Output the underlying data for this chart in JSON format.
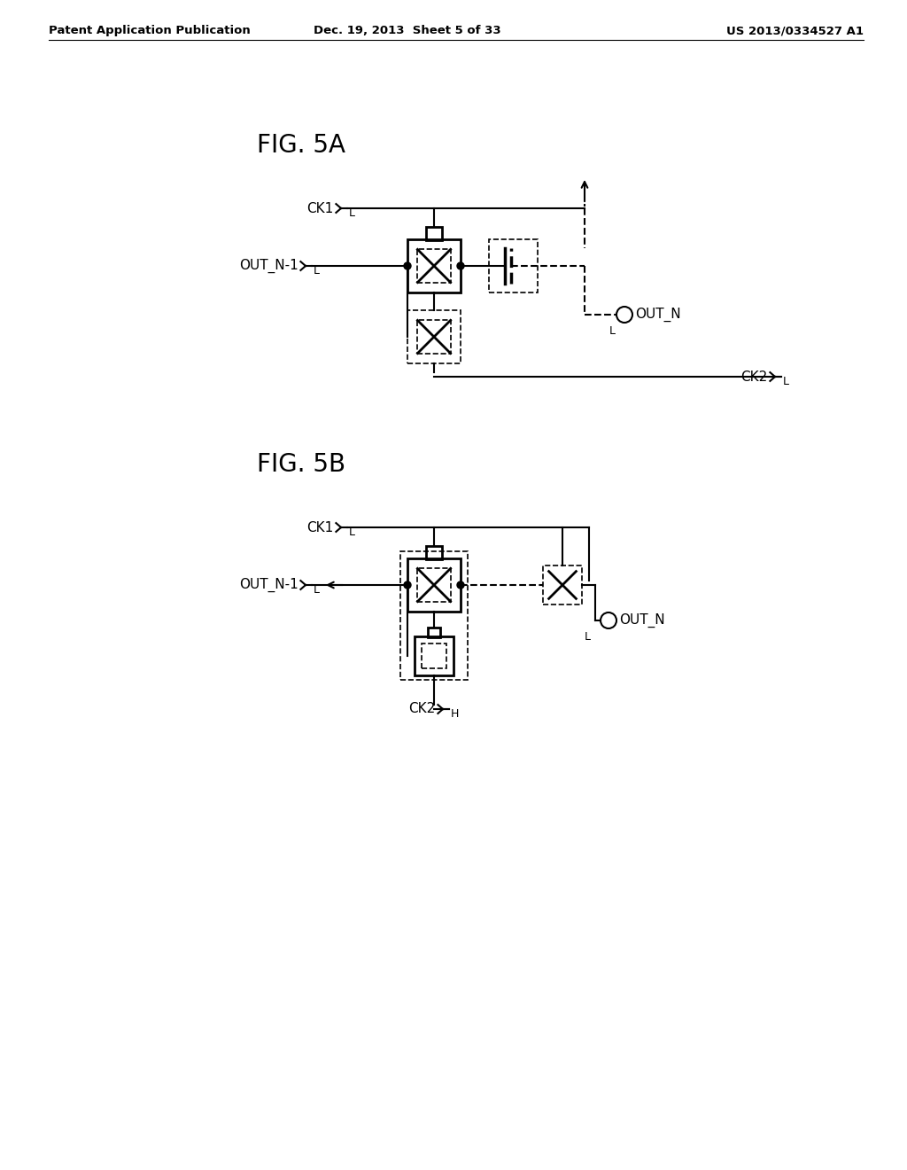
{
  "background_color": "#ffffff",
  "header_left": "Patent Application Publication",
  "header_center": "Dec. 19, 2013  Sheet 5 of 33",
  "header_right": "US 2013/0334527 A1",
  "fig5a_label": "FIG. 5A",
  "fig5b_label": "FIG. 5B",
  "text_color": "#000000",
  "line_color": "#000000",
  "fig5a_ck1_label": "CK1",
  "fig5a_ck1_val": "L",
  "fig5a_outn1_label": "OUT_N-1",
  "fig5a_outn1_val": "L",
  "fig5a_ck2_label": "CK2",
  "fig5a_ck2_val": "L",
  "fig5a_outn_label": "OUT_N",
  "fig5a_outn_val": "L",
  "fig5b_ck1_label": "CK1",
  "fig5b_ck1_val": "L",
  "fig5b_outn1_label": "OUT_N-1",
  "fig5b_outn1_val": "L",
  "fig5b_ck2_label": "CK2",
  "fig5b_ck2_val": "H",
  "fig5b_outn_label": "OUT_N",
  "fig5b_outn_val": "L"
}
